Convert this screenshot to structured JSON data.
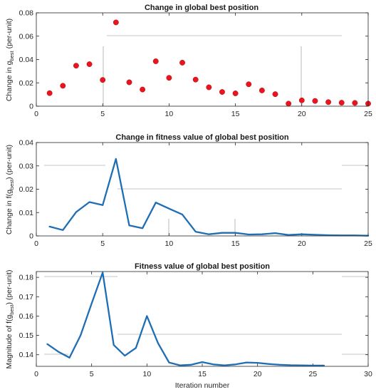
{
  "chart_data": [
    {
      "type": "scatter",
      "title": "Change in global best position",
      "xlabel": "",
      "ylabel": "Change in g",
      "ylabel_sub": "best",
      "ylabel_suffix": " (per-unit)",
      "xlim": [
        0,
        25
      ],
      "ylim": [
        0,
        0.08
      ],
      "xticks": [
        "0",
        "5",
        "10",
        "15",
        "20",
        "25"
      ],
      "yticks": [
        "0",
        "0.02",
        "0.04",
        "0.06",
        "0.08"
      ],
      "marker_color": "#e8141e",
      "series": [
        {
          "x": [
            1,
            2,
            3,
            4,
            5,
            6,
            7,
            8,
            9,
            10,
            11,
            12,
            13,
            14,
            15,
            16,
            17,
            18,
            19,
            20,
            21,
            22,
            23,
            24,
            25
          ],
          "y": [
            0.0112,
            0.0175,
            0.0347,
            0.036,
            0.0225,
            0.0718,
            0.0205,
            0.0143,
            0.0385,
            0.0243,
            0.0373,
            0.0228,
            0.0162,
            0.0122,
            0.011,
            0.0188,
            0.0135,
            0.0103,
            0.0022,
            0.005,
            0.0045,
            0.0035,
            0.003,
            0.0028,
            0.0022
          ]
        }
      ]
    },
    {
      "type": "line",
      "title": "Change in fitness value of global best position",
      "xlabel": "",
      "ylabel": "Change in f(g",
      "ylabel_sub": "best",
      "ylabel_suffix": ") (per-unit)",
      "xlim": [
        0,
        25
      ],
      "ylim": [
        0,
        0.04
      ],
      "xticks": [
        "0",
        "5",
        "10",
        "15",
        "20",
        "25"
      ],
      "yticks": [
        "0",
        "0.01",
        "0.02",
        "0.03",
        "0.04"
      ],
      "line_color": "#1f6eb4",
      "series": [
        {
          "x": [
            1,
            2,
            3,
            4,
            5,
            6,
            7,
            8,
            9,
            10,
            11,
            12,
            13,
            14,
            15,
            16,
            17,
            18,
            19,
            20,
            21,
            22,
            23,
            24,
            25
          ],
          "y": [
            0.004,
            0.0025,
            0.0102,
            0.0145,
            0.0132,
            0.033,
            0.0045,
            0.0033,
            0.0143,
            0.0117,
            0.0092,
            0.0018,
            0.0007,
            0.0013,
            0.0013,
            0.0006,
            0.0007,
            0.0012,
            0.0004,
            0.0007,
            0.0005,
            0.0003,
            0.0002,
            0.0002,
            0.0001
          ]
        }
      ]
    },
    {
      "type": "line",
      "title": "Fitness value of global best position",
      "xlabel": "Iteration number",
      "ylabel": "Magnitude of f(g",
      "ylabel_sub": "best",
      "ylabel_suffix": ") (per-unit)",
      "xlim": [
        0,
        30
      ],
      "ylim": [
        0.134,
        0.183
      ],
      "xticks": [
        "0",
        "5",
        "10",
        "15",
        "20",
        "25",
        "30"
      ],
      "yticks": [
        "0.14",
        "0.15",
        "0.16",
        "0.17",
        "0.18"
      ],
      "line_color": "#1f6eb4",
      "series": [
        {
          "x": [
            1,
            2,
            3,
            4,
            5,
            6,
            7,
            8,
            9,
            10,
            11,
            12,
            13,
            14,
            15,
            16,
            17,
            18,
            19,
            20,
            21,
            22,
            23,
            24,
            25,
            26
          ],
          "y": [
            0.1455,
            0.1415,
            0.1385,
            0.15,
            0.1665,
            0.1825,
            0.145,
            0.1395,
            0.1435,
            0.16,
            0.146,
            0.136,
            0.1345,
            0.1348,
            0.1362,
            0.135,
            0.1345,
            0.135,
            0.136,
            0.1358,
            0.1352,
            0.1348,
            0.1346,
            0.1345,
            0.1344,
            0.1344
          ]
        }
      ]
    }
  ]
}
